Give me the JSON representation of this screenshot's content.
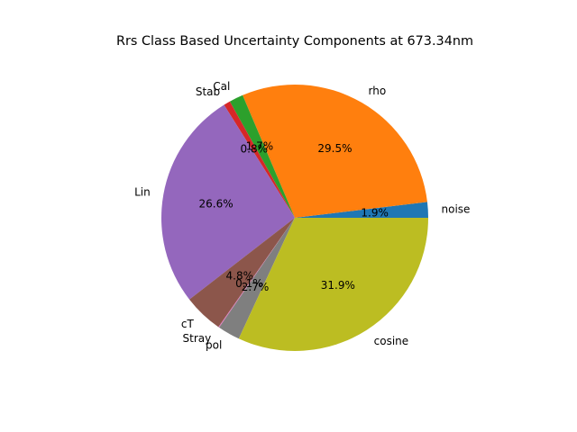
{
  "chart_data": {
    "type": "pie",
    "title": "Rrs Class Based Uncertainty Components at 673.34nm",
    "legend": "none",
    "start_angle_deg": 0,
    "direction": "counterclockwise",
    "slices": [
      {
        "label": "noise",
        "value": 1.9,
        "pct_label": "1.9%",
        "color": "#1f77b4"
      },
      {
        "label": "rho",
        "value": 29.5,
        "pct_label": "29.5%",
        "color": "#ff7f0e"
      },
      {
        "label": "Cal",
        "value": 1.7,
        "pct_label": "1.7%",
        "color": "#2ca02c"
      },
      {
        "label": "Stab",
        "value": 0.8,
        "pct_label": "0.8%",
        "color": "#d62728"
      },
      {
        "label": "Lin",
        "value": 26.6,
        "pct_label": "26.6%",
        "color": "#9467bd"
      },
      {
        "label": "cT",
        "value": 4.8,
        "pct_label": "4.8%",
        "color": "#8c564b"
      },
      {
        "label": "Stray",
        "value": 0.1,
        "pct_label": "0.1%",
        "color": "#e377c2"
      },
      {
        "label": "pol",
        "value": 2.7,
        "pct_label": "2.7%",
        "color": "#7f7f7f"
      },
      {
        "label": "cosine",
        "value": 31.9,
        "pct_label": "31.9%",
        "color": "#bcbd22"
      }
    ]
  }
}
